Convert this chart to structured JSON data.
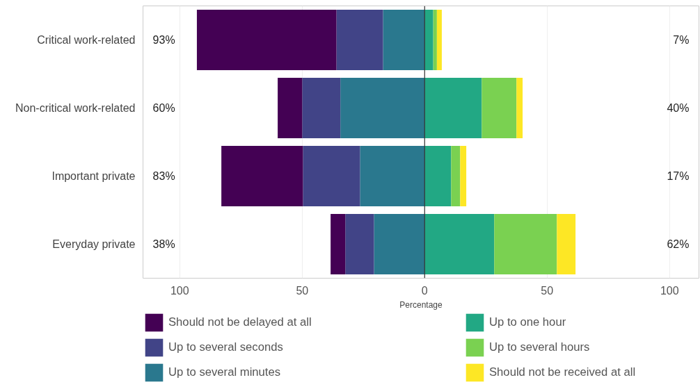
{
  "chart_data": {
    "type": "bar",
    "orientation": "horizontal",
    "stacked": true,
    "xlabel": "Percentage",
    "categories": [
      "Critical work-related",
      "Non-critical work-related",
      "Important private",
      "Everyday private"
    ],
    "series": [
      {
        "name": "Up to several minutes",
        "color": "#2a788e",
        "values": [
          -17,
          -34.4,
          -26.4,
          -20.7
        ]
      },
      {
        "name": "Up to several seconds",
        "color": "#414487",
        "values": [
          -19,
          -15.6,
          -23.3,
          -11.7
        ]
      },
      {
        "name": "Should not be delayed at all",
        "color": "#440154",
        "values": [
          -57,
          -10,
          -33.3,
          -6
        ]
      },
      {
        "name": "Up to one hour",
        "color": "#22a884",
        "values": [
          3.5,
          23.3,
          10.8,
          28.4
        ]
      },
      {
        "name": "Up to several hours",
        "color": "#7ad151",
        "values": [
          1.5,
          14.2,
          3.7,
          25.6
        ]
      },
      {
        "name": "Should not be received at all",
        "color": "#fde725",
        "values": [
          2,
          2.5,
          2.5,
          7.6
        ]
      }
    ],
    "totals": [
      [
        "93%",
        "7%"
      ],
      [
        "60%",
        "40%"
      ],
      [
        "83%",
        "17%"
      ],
      [
        "38%",
        "62%"
      ]
    ],
    "xlim": [
      -115,
      112
    ],
    "xticks": [
      {
        "value": -100,
        "label": "100"
      },
      {
        "value": -50,
        "label": "50"
      },
      0,
      50,
      100
    ],
    "ref_lines": [
      {
        "axis": "x",
        "value": 0,
        "color": "#333333"
      }
    ],
    "grid": "x",
    "legend": "bottom"
  }
}
